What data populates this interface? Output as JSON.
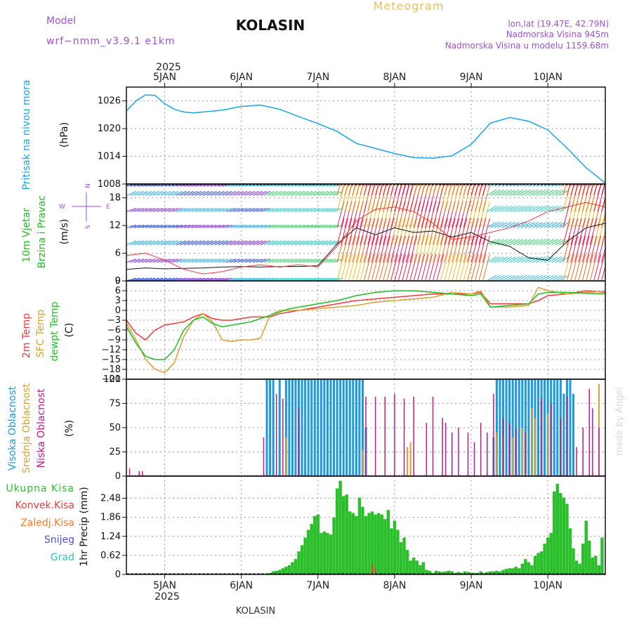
{
  "header": {
    "model_label": "Model",
    "model_name": "wrf−nmm_v3.9.1  e1km",
    "station": "KOLASIN",
    "product": "Meteogram",
    "coords": "lon,lat (19.47E, 42.79N)",
    "altitude": "Nadmorska Visina 945m",
    "model_altitude": "Nadmorska Visina u modelu 1159.68m",
    "footer_station": "KOLASIN",
    "watermark": "made by Angel"
  },
  "colors": {
    "pressure": "#1aa4ea",
    "temp2m": "#ee3b3b",
    "sfc": "#d9a030",
    "dewpt": "#22bb22",
    "high_cloud": "#1a9ae0",
    "mid_cloud": "#d9a030",
    "low_cloud": "#c01a8c",
    "precip": "#2bbf2b",
    "konvek": "#ee3b3b",
    "zaledj": "#f07d30",
    "snow": "#5050e0",
    "grad": "#30c0c0",
    "model_label": "#a050d0",
    "product": "#e8c060"
  },
  "time_axis": {
    "year": "2025",
    "ticks": [
      "5JAN",
      "6JAN",
      "7JAN",
      "8JAN",
      "9JAN",
      "10JAN"
    ],
    "start_hour": -12,
    "end_hour": 138
  },
  "chart_data": [
    {
      "type": "line",
      "panel": "pressure",
      "ylabel_title": "Pritisak na nivou mora",
      "unit": "(hPa)",
      "ylim": [
        1008,
        1029
      ],
      "yticks": [
        "1008",
        "1014",
        "1020",
        "1026"
      ],
      "grid": true,
      "x_hours": [
        -12,
        -9,
        -6,
        -3,
        0,
        3,
        6,
        9,
        12,
        18,
        24,
        30,
        36,
        42,
        48,
        54,
        60,
        66,
        72,
        78,
        84,
        90,
        96,
        102,
        108,
        114,
        120,
        126,
        132,
        138
      ],
      "series": [
        {
          "values": [
            1023.8,
            1026,
            1027.3,
            1027.2,
            1025.4,
            1024.2,
            1023.6,
            1023.4,
            1023.6,
            1024,
            1024.8,
            1025.1,
            1024.2,
            1022.6,
            1021.1,
            1019.4,
            1016.8,
            1015.7,
            1014.6,
            1013.7,
            1013.6,
            1014.1,
            1016.6,
            1021.2,
            1022.4,
            1021.6,
            1019.7,
            1015.8,
            1011.5,
            1008.2
          ]
        }
      ]
    },
    {
      "type": "line",
      "panel": "wind",
      "ylabel_title": "10m Vjetar",
      "ylabel_sub": "Brzina i Pravac",
      "unit": "(m/s)",
      "ylim": [
        0,
        21
      ],
      "yticks": [
        "0",
        "6",
        "12",
        "18"
      ],
      "compass": [
        "W",
        "E",
        "S",
        "N"
      ],
      "grid": true,
      "x_hours": [
        -12,
        -6,
        0,
        6,
        12,
        18,
        24,
        30,
        36,
        42,
        48,
        54,
        60,
        66,
        72,
        78,
        84,
        90,
        96,
        102,
        108,
        114,
        120,
        126,
        132,
        138
      ],
      "series": [
        {
          "values": [
            2.5,
            2.8,
            2.6,
            2.7,
            2.8,
            3.0,
            3.1,
            3.0,
            3.1,
            3.1,
            3.3,
            8.0,
            11.5,
            10.0,
            11.5,
            10.5,
            10.8,
            9.5,
            10.5,
            8.5,
            7.5,
            5.0,
            4.5,
            8.5,
            11.5,
            12.5
          ]
        },
        {
          "values": [
            5.5,
            6.0,
            4.5,
            2.5,
            1.5,
            2.0,
            3.0,
            3.5,
            3.0,
            3.5,
            3.0,
            7.5,
            13.0,
            15.5,
            16.0,
            15.0,
            12.5,
            9.0,
            9.5,
            10.5,
            11.5,
            13.0,
            15.0,
            16.0,
            17.0,
            16.0
          ]
        }
      ],
      "barbs": {
        "rows_y": [
          0,
          4,
          7.8,
          11.5,
          15,
          18.5,
          20.5
        ]
      }
    },
    {
      "type": "line",
      "panel": "temperature",
      "ylabel_title": "2m Temp",
      "ylabel_sub": "SFC Temp",
      "ylabel_sub2": "dewpt Temp",
      "unit": "(C)",
      "ylim": [
        -21,
        9
      ],
      "yticks": [
        "9",
        "6",
        "3",
        "0",
        "−3",
        "−6",
        "−9",
        "−12",
        "−15",
        "−18",
        "−21"
      ],
      "grid": true,
      "x_hours": [
        -12,
        -9,
        -6,
        -3,
        0,
        3,
        6,
        9,
        12,
        15,
        18,
        21,
        24,
        27,
        30,
        33,
        36,
        39,
        42,
        48,
        54,
        60,
        66,
        72,
        78,
        84,
        90,
        96,
        99,
        102,
        108,
        114,
        117,
        120,
        126,
        132,
        138
      ],
      "series": [
        {
          "name": "2m Temp",
          "values": [
            -3,
            -7,
            -9,
            -6,
            -4.5,
            -4,
            -3.5,
            -2,
            -1,
            -2.5,
            -3,
            -3,
            -2.5,
            -2,
            -2,
            -2,
            -1,
            -0.5,
            0,
            1,
            2,
            3,
            3.5,
            4,
            4.5,
            5,
            5,
            5,
            5.5,
            2,
            2,
            2,
            3,
            4.5,
            5,
            6,
            5.5
          ]
        },
        {
          "name": "SFC Temp",
          "values": [
            -4,
            -9,
            -15,
            -18,
            -19,
            -16,
            -8,
            -3,
            -1,
            -3.5,
            -9,
            -9.5,
            -9,
            -9,
            -8.5,
            -1.5,
            0,
            0,
            0,
            0.5,
            1,
            1.5,
            2.5,
            3,
            3.5,
            4,
            5.5,
            5,
            6,
            1,
            1,
            1.5,
            7,
            6,
            5,
            5.5,
            5.8
          ]
        },
        {
          "name": "dewpt Temp",
          "values": [
            -5,
            -10,
            -14,
            -15,
            -15,
            -12,
            -6,
            -3,
            -2,
            -4,
            -5,
            -4.5,
            -4,
            -3.5,
            -2.5,
            -1.5,
            -0.5,
            0.5,
            1,
            2,
            3,
            4.5,
            5.5,
            6,
            6,
            5.5,
            5,
            4.5,
            5,
            1,
            1.5,
            2,
            5,
            5.5,
            5.5,
            5.2,
            5
          ]
        }
      ]
    },
    {
      "type": "bar",
      "panel": "clouds",
      "ylabel_title": "Visoka Oblacnost",
      "ylabel_sub": "Srednja Oblacnost",
      "ylabel_sub2": "Niska Oblacnost",
      "unit": "(%)",
      "ylim": [
        0,
        100
      ],
      "yticks": [
        "0",
        "25",
        "50",
        "75",
        "100"
      ],
      "grid": true,
      "series": [
        {
          "name": "Visoka Oblacnost",
          "x_hours": [
            32,
            33,
            34,
            36,
            38,
            39,
            40,
            41,
            42,
            43,
            44,
            45,
            46,
            47,
            48,
            49,
            50,
            51,
            52,
            53,
            54,
            55,
            56,
            57,
            58,
            59,
            60,
            61,
            62,
            63,
            103,
            104,
            105,
            106,
            107,
            108,
            109,
            110,
            111,
            112,
            113,
            114,
            115,
            116,
            117,
            118,
            119,
            120,
            121,
            122,
            123,
            124,
            125,
            126,
            127,
            128
          ],
          "values": [
            100,
            100,
            100,
            100,
            100,
            100,
            100,
            100,
            100,
            100,
            100,
            100,
            100,
            100,
            100,
            100,
            100,
            100,
            100,
            100,
            100,
            100,
            100,
            100,
            100,
            100,
            100,
            100,
            100,
            50,
            40,
            100,
            100,
            100,
            100,
            100,
            100,
            100,
            100,
            100,
            100,
            100,
            100,
            100,
            100,
            100,
            100,
            100,
            100,
            100,
            100,
            100,
            85,
            100,
            100,
            85
          ]
        },
        {
          "name": "Srednja Oblacnost",
          "x_hours": [
            38,
            62,
            76,
            77,
            104,
            106,
            109,
            112,
            115,
            116,
            120,
            136
          ],
          "values": [
            40,
            27,
            30,
            35,
            45,
            42,
            40,
            50,
            70,
            60,
            65,
            95
          ]
        },
        {
          "name": "Niska Oblacnost",
          "x_hours": [
            -11,
            -8,
            -7,
            31,
            35,
            37,
            42,
            63,
            66,
            69,
            72,
            75,
            78,
            82,
            84,
            87,
            88,
            90,
            92,
            95,
            97,
            99,
            101,
            103,
            106,
            108,
            110,
            113,
            118,
            121,
            124,
            126,
            129,
            131,
            133,
            134,
            136
          ],
          "values": [
            8,
            5,
            5,
            40,
            85,
            80,
            70,
            82,
            82,
            82,
            85,
            80,
            82,
            55,
            82,
            60,
            55,
            45,
            50,
            45,
            35,
            55,
            45,
            85,
            60,
            55,
            50,
            45,
            80,
            75,
            60,
            82,
            30,
            50,
            90,
            70,
            50
          ]
        }
      ]
    },
    {
      "type": "bar",
      "panel": "precip",
      "legend": [
        "Ukupna Kisa",
        "Konvek.Kisa",
        "Zaledj.Kisa",
        "Snijeg",
        "Grad"
      ],
      "unit": "1hr Precip (mm)",
      "ylim": [
        0,
        3.2
      ],
      "yticks": [
        "0",
        "0.62",
        "1.24",
        "1.86",
        "2.48"
      ],
      "grid": true,
      "x_hours": [
        33,
        34,
        35,
        36,
        37,
        38,
        39,
        40,
        41,
        42,
        43,
        44,
        45,
        46,
        47,
        48,
        49,
        50,
        51,
        52,
        53,
        54,
        55,
        56,
        57,
        58,
        59,
        60,
        61,
        62,
        63,
        64,
        65,
        66,
        67,
        68,
        69,
        70,
        71,
        72,
        73,
        74,
        75,
        76,
        77,
        78,
        79,
        80,
        81,
        82,
        83,
        84,
        85,
        86,
        87,
        88,
        89,
        90,
        91,
        92,
        93,
        94,
        95,
        96,
        97,
        98,
        99,
        100,
        101,
        102,
        103,
        104,
        105,
        106,
        107,
        108,
        109,
        110,
        111,
        112,
        113,
        114,
        115,
        116,
        117,
        118,
        119,
        120,
        121,
        122,
        123,
        124,
        125,
        126,
        127,
        128,
        129,
        130,
        131,
        132,
        133,
        134,
        135,
        136,
        137
      ],
      "values": [
        0.05,
        0.1,
        0.12,
        0.15,
        0.2,
        0.25,
        0.3,
        0.4,
        0.5,
        0.75,
        0.95,
        1.2,
        1.45,
        1.65,
        1.9,
        1.95,
        1.35,
        1.4,
        1.35,
        1.3,
        1.85,
        2.8,
        3.05,
        2.55,
        2.6,
        2.05,
        2.0,
        1.9,
        2.5,
        2.2,
        1.9,
        2.0,
        2.05,
        1.95,
        2.0,
        1.95,
        1.8,
        2.1,
        1.5,
        1.75,
        1.45,
        1.05,
        1.2,
        0.8,
        0.45,
        0.55,
        0.45,
        0.3,
        0.4,
        0.15,
        0.12,
        0.05,
        0.12,
        0.1,
        0.08,
        0.1,
        0.12,
        0.1,
        0.05,
        0.08,
        0.05,
        0.1,
        0.08,
        0.06,
        0.05,
        0.05,
        0.1,
        0.05,
        0.08,
        0.1,
        0.1,
        0.12,
        0.1,
        0.15,
        0.18,
        0.2,
        0.2,
        0.25,
        0.2,
        0.35,
        0.5,
        0.4,
        0.3,
        0.6,
        0.7,
        0.75,
        1.0,
        1.2,
        1.35,
        2.7,
        2.95,
        2.65,
        2.5,
        2.3,
        1.5,
        0.85,
        0.45,
        0.35,
        1.0,
        1.75,
        1.1,
        0.55,
        0.6,
        0.3,
        1.2
      ],
      "konvek_x_hours": [
        65,
        66
      ],
      "konvek_values": [
        0.35,
        0.2
      ]
    }
  ]
}
